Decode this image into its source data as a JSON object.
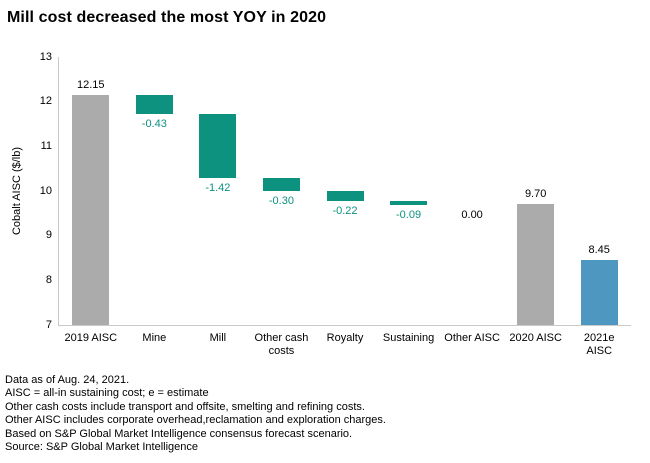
{
  "title": "Mill cost decreased the most YOY in 2020",
  "chart_data": {
    "type": "waterfall",
    "title": "Mill cost decreased the most YOY in 2020",
    "xlabel": "",
    "ylabel": "Cobalt AISC ($/lb)",
    "ylim": [
      7,
      13
    ],
    "yticks": [
      7,
      8,
      9,
      10,
      11,
      12,
      13
    ],
    "grid": false,
    "legend": "none",
    "categories": [
      "2019 AISC",
      "Mine",
      "Mill",
      "Other cash costs",
      "Royalty",
      "Sustaining",
      "Other AISC",
      "2020 AISC",
      "2021e AISC"
    ],
    "bars": [
      {
        "category": "2019 AISC",
        "kind": "total",
        "value": 12.15,
        "start": 7,
        "end": 12.15,
        "label": "12.15",
        "label_pos": "above"
      },
      {
        "category": "Mine",
        "kind": "change",
        "value": -0.43,
        "start": 12.15,
        "end": 11.72,
        "label": "-0.43",
        "label_pos": "below"
      },
      {
        "category": "Mill",
        "kind": "change",
        "value": -1.42,
        "start": 11.72,
        "end": 10.3,
        "label": "-1.42",
        "label_pos": "below"
      },
      {
        "category": "Other cash\ncosts",
        "kind": "change",
        "value": -0.3,
        "start": 10.3,
        "end": 10.0,
        "label": "-0.30",
        "label_pos": "below"
      },
      {
        "category": "Royalty",
        "kind": "change",
        "value": -0.22,
        "start": 10.0,
        "end": 9.78,
        "label": "-0.22",
        "label_pos": "below"
      },
      {
        "category": "Sustaining",
        "kind": "change",
        "value": -0.09,
        "start": 9.78,
        "end": 9.69,
        "label": "-0.09",
        "label_pos": "below"
      },
      {
        "category": "Other AISC",
        "kind": "zero",
        "value": 0.0,
        "start": 9.69,
        "end": 9.69,
        "label": "0.00",
        "label_pos": "below"
      },
      {
        "category": "2020 AISC",
        "kind": "total",
        "value": 9.7,
        "start": 7,
        "end": 9.7,
        "label": "9.70",
        "label_pos": "above"
      },
      {
        "category": "2021e\nAISC",
        "kind": "forecast",
        "value": 8.45,
        "start": 7,
        "end": 8.45,
        "label": "8.45",
        "label_pos": "above"
      }
    ],
    "colors": {
      "total_bar": "#ABABAB",
      "change_bar": "#0D9280",
      "forecast_bar": "#4E97C1",
      "negative_label_text": "#0D9280",
      "label_text": "#000000",
      "axis_line": "#C9C9C9"
    }
  },
  "footnotes": [
    "Data as of Aug. 24, 2021.",
    "AISC = all-in sustaining cost; e = estimate",
    "Other cash costs include transport and offsite, smelting and refining costs.",
    "Other AISC includes corporate overhead,reclamation and exploration charges.",
    "Based on S&P Global Market Intelligence consensus forecast scenario.",
    "Source: S&P Global Market Intelligence"
  ]
}
